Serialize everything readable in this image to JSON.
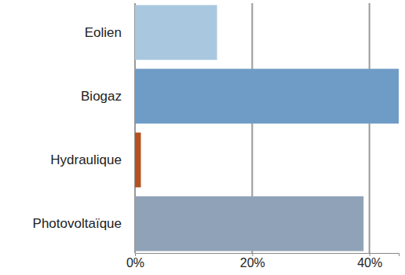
{
  "chart_data": {
    "type": "bar",
    "orientation": "horizontal",
    "categories": [
      "Eolien",
      "Biogaz",
      "Hydraulique",
      "Photovoltaïque"
    ],
    "values": [
      14,
      45,
      1,
      39
    ],
    "colors": [
      "#a9c8e0",
      "#6f9cc6",
      "#b5501f",
      "#8fa2b8"
    ],
    "xlim": [
      0,
      45
    ],
    "xticks": [
      {
        "value": 0,
        "label": "0%"
      },
      {
        "value": 20,
        "label": "20%"
      },
      {
        "value": 40,
        "label": "40%"
      }
    ],
    "grid": true
  }
}
